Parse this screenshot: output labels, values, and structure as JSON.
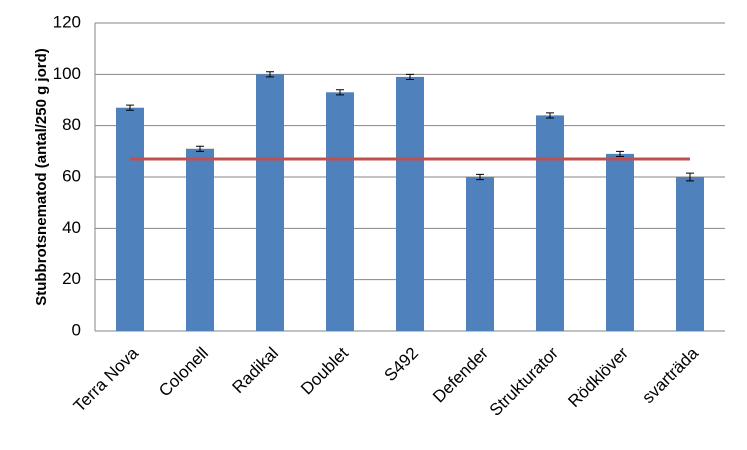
{
  "chart_data": {
    "type": "bar",
    "y_label": "Stubbrotsnematod (antal/250 g jord)",
    "categories": [
      "Terra Nova",
      "Colonell",
      "Radikal",
      "Doublet",
      "S492",
      "Defender",
      "Strukturator",
      "Rödklöver",
      "svarträda"
    ],
    "values": [
      87,
      71,
      100,
      93,
      99,
      60,
      84,
      69,
      60
    ],
    "errors": [
      1,
      1,
      1,
      1,
      1,
      1,
      1,
      1,
      1.5
    ],
    "color": "#4f81bd",
    "reference_line": {
      "value": 67,
      "color": "#c0504d"
    },
    "ylim": [
      0,
      120
    ],
    "yticks": [
      0,
      20,
      40,
      60,
      80,
      100,
      120
    ],
    "grid": true
  }
}
